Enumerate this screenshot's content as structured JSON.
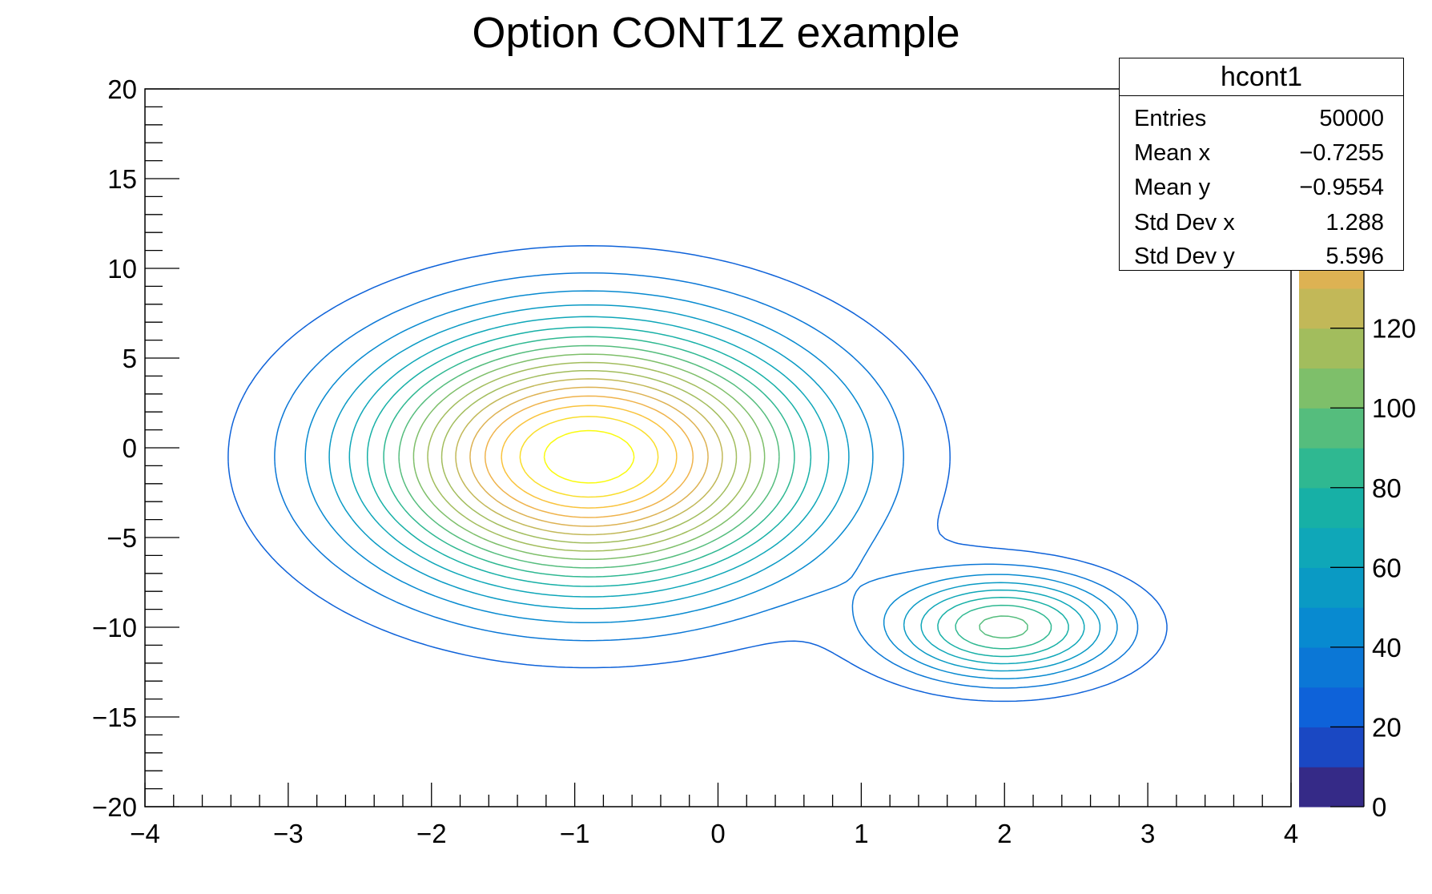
{
  "chart_data": {
    "type": "contour",
    "title": "Option CONT1Z example",
    "xlabel": "",
    "ylabel": "",
    "xlim": [
      -4,
      4
    ],
    "ylim": [
      -20,
      20
    ],
    "x_ticks": [
      "−4",
      "−3",
      "−2",
      "−1",
      "0",
      "1",
      "2",
      "3",
      "4"
    ],
    "y_ticks": [
      "−20",
      "−15",
      "−10",
      "−5",
      "0",
      "5",
      "10",
      "15",
      "20"
    ],
    "z_ticks": [
      "0",
      "20",
      "40",
      "60",
      "80",
      "100",
      "120"
    ],
    "z_range": [
      0,
      180
    ],
    "contour_levels": 20,
    "colormap": "kBird",
    "colors": [
      "#352a87",
      "#1a48c3",
      "#0e62d9",
      "#0b77d6",
      "#088ad0",
      "#0a9ac4",
      "#0fa7b8",
      "#17b0a6",
      "#2fb891",
      "#55bd7d",
      "#7ebf6a",
      "#a2bd5d",
      "#c2b858",
      "#ddb253",
      "#efb34c",
      "#f9c33d",
      "#f9de2c",
      "#f9fb0e"
    ],
    "stats": {
      "name": "hcont1",
      "entries_label": "Entries",
      "entries": "50000",
      "meanx_label": "Mean x",
      "meanx": "−0.7255",
      "meany_label": "Mean y",
      "meany": "−0.9554",
      "stdx_label": "Std Dev x",
      "stdx": "1.288",
      "stdy_label": "Std Dev y",
      "stdy": "5.596"
    },
    "peaks": [
      {
        "x": -0.9,
        "y": -0.5,
        "sx": 1.05,
        "sy": 4.9,
        "amp": 160
      },
      {
        "x": 2.0,
        "y": -10.0,
        "sx": 0.55,
        "sy": 2.0,
        "amp": 75
      }
    ]
  }
}
